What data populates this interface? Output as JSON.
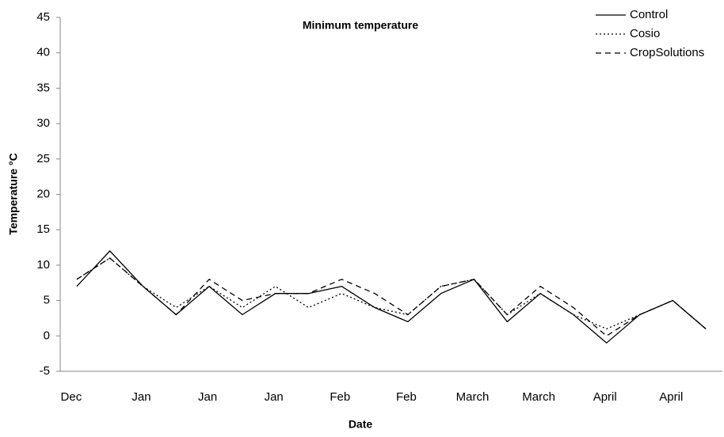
{
  "chart_data": {
    "type": "line",
    "title": "Minimum temperature",
    "xlabel": "Date",
    "ylabel": "Temperature °C",
    "categories": [
      "Dec",
      null,
      "Jan",
      null,
      "Jan",
      null,
      "Jan",
      null,
      "Feb",
      null,
      "Feb",
      null,
      "March",
      null,
      "March",
      null,
      "April",
      null,
      "April",
      null
    ],
    "series": [
      {
        "name": "Control",
        "color": "#000000",
        "dash": "solid",
        "values": [
          7,
          12,
          7,
          3,
          7,
          3,
          6,
          6,
          7,
          4,
          2,
          6,
          8,
          2,
          6,
          3,
          -1,
          3,
          5,
          1
        ]
      },
      {
        "name": "Cosio",
        "color": "#000000",
        "dash": "dotted",
        "values": [
          8,
          11,
          7,
          4,
          7,
          4,
          7,
          4,
          6,
          4,
          3,
          7,
          8,
          3,
          6,
          3,
          1,
          3,
          5,
          1
        ]
      },
      {
        "name": "CropSolutions",
        "color": "#000000",
        "dash": "dashed",
        "values": [
          8,
          11,
          7,
          3,
          8,
          5,
          6,
          6,
          8,
          6,
          3,
          7,
          8,
          3,
          7,
          4,
          0,
          3,
          5,
          1
        ]
      }
    ],
    "ylim": [
      -5,
      45
    ],
    "yticks": [
      -5,
      0,
      5,
      10,
      15,
      20,
      25,
      30,
      35,
      40,
      45
    ],
    "grid": false,
    "legend": "upper right"
  }
}
